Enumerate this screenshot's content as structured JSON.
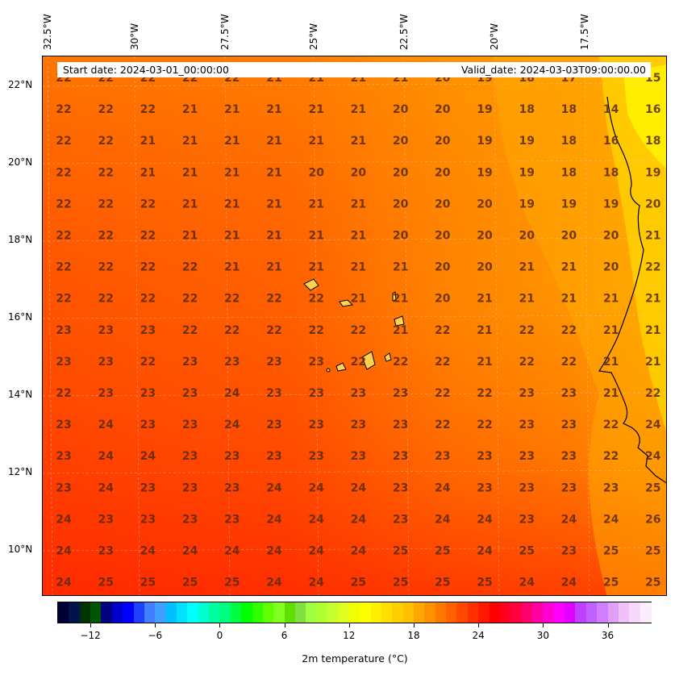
{
  "header": {
    "start_label": "Start date: 2024-03-01_00:00:00",
    "valid_label": "Valid_date: 2024-03-03T09:00:00.00"
  },
  "lon_ticks": [
    "32.5°W",
    "30°W",
    "27.5°W",
    "25°W",
    "22.5°W",
    "20°W",
    "17.5°W"
  ],
  "lat_ticks": [
    "22°N",
    "20°N",
    "18°N",
    "16°N",
    "14°N",
    "12°N",
    "10°N"
  ],
  "colorbar": {
    "title": "2m temperature ($^\\circ$C)",
    "title_display": "2m temperature (°C)",
    "ticks": [
      "−12",
      "−6",
      "0",
      "6",
      "12",
      "18",
      "24",
      "30",
      "36"
    ],
    "range": [
      -15,
      40
    ]
  },
  "grid_values": [
    [
      "22",
      "22",
      "22",
      "22",
      "22",
      "21",
      "21",
      "21",
      "21",
      "20",
      "19",
      "18",
      "17",
      "15"
    ],
    [
      "22",
      "22",
      "22",
      "21",
      "21",
      "21",
      "21",
      "21",
      "20",
      "20",
      "19",
      "18",
      "18",
      "14",
      "16"
    ],
    [
      "22",
      "22",
      "21",
      "21",
      "21",
      "21",
      "21",
      "21",
      "20",
      "20",
      "19",
      "19",
      "18",
      "16",
      "18"
    ],
    [
      "22",
      "22",
      "21",
      "21",
      "21",
      "21",
      "20",
      "20",
      "20",
      "20",
      "19",
      "19",
      "18",
      "18",
      "19"
    ],
    [
      "22",
      "22",
      "22",
      "21",
      "21",
      "21",
      "21",
      "21",
      "20",
      "20",
      "20",
      "19",
      "19",
      "19",
      "20"
    ],
    [
      "22",
      "22",
      "22",
      "21",
      "21",
      "21",
      "21",
      "21",
      "20",
      "20",
      "20",
      "20",
      "20",
      "20",
      "21"
    ],
    [
      "22",
      "22",
      "22",
      "22",
      "21",
      "21",
      "21",
      "21",
      "21",
      "20",
      "20",
      "21",
      "21",
      "20",
      "22"
    ],
    [
      "22",
      "22",
      "22",
      "22",
      "22",
      "22",
      "22",
      "21",
      "21",
      "20",
      "21",
      "21",
      "21",
      "21",
      "21"
    ],
    [
      "23",
      "23",
      "23",
      "22",
      "22",
      "22",
      "22",
      "22",
      "21",
      "22",
      "21",
      "22",
      "22",
      "21",
      "21"
    ],
    [
      "23",
      "23",
      "22",
      "23",
      "23",
      "23",
      "23",
      "22",
      "22",
      "22",
      "21",
      "22",
      "22",
      "21",
      "21"
    ],
    [
      "22",
      "23",
      "23",
      "23",
      "24",
      "23",
      "23",
      "23",
      "23",
      "22",
      "22",
      "23",
      "23",
      "21",
      "22"
    ],
    [
      "23",
      "24",
      "23",
      "23",
      "24",
      "23",
      "23",
      "23",
      "23",
      "22",
      "22",
      "23",
      "23",
      "22",
      "24"
    ],
    [
      "23",
      "24",
      "24",
      "23",
      "23",
      "23",
      "23",
      "23",
      "23",
      "23",
      "23",
      "23",
      "23",
      "22",
      "24"
    ],
    [
      "23",
      "24",
      "23",
      "23",
      "23",
      "24",
      "24",
      "24",
      "23",
      "24",
      "23",
      "23",
      "23",
      "23",
      "25"
    ],
    [
      "24",
      "23",
      "23",
      "23",
      "23",
      "24",
      "24",
      "24",
      "23",
      "24",
      "24",
      "23",
      "24",
      "24",
      "26"
    ],
    [
      "24",
      "23",
      "24",
      "24",
      "24",
      "24",
      "24",
      "24",
      "25",
      "25",
      "24",
      "25",
      "23",
      "25",
      "25"
    ],
    [
      "24",
      "25",
      "25",
      "25",
      "25",
      "24",
      "24",
      "25",
      "25",
      "25",
      "25",
      "24",
      "24",
      "25",
      "25"
    ]
  ],
  "colors": {
    "land_outline": "#000000",
    "warm": "#ff2a00",
    "mid": "#ff7a00",
    "cool": "#ffb000",
    "coastal": "#ffe600",
    "label": "#5a2a10"
  }
}
